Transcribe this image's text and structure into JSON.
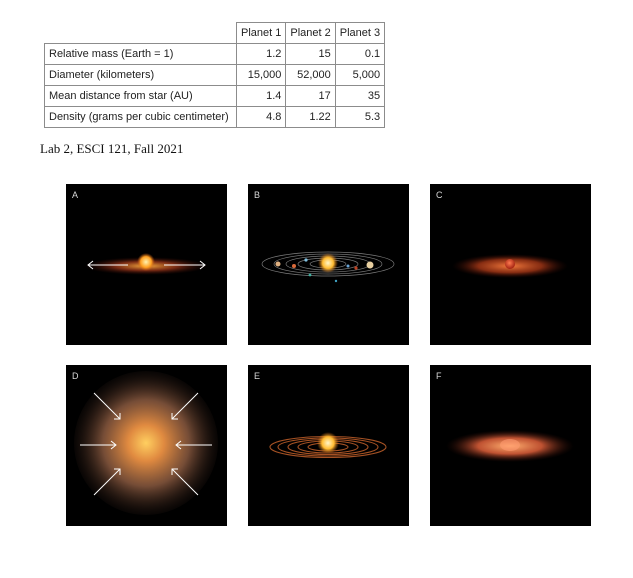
{
  "table": {
    "headers": [
      "",
      "Planet 1",
      "Planet 2",
      "Planet 3"
    ],
    "rows": [
      {
        "label": "Relative mass (Earth = 1)",
        "values": [
          "1.2",
          "15",
          "0.1"
        ]
      },
      {
        "label": "Diameter (kilometers)",
        "values": [
          "15,000",
          "52,000",
          "5,000"
        ]
      },
      {
        "label": "Mean distance from star (AU)",
        "values": [
          "1.4",
          "17",
          "35"
        ]
      },
      {
        "label": "Density (grams per cubic centimeter)",
        "values": [
          "4.8",
          "1.22",
          "5.3"
        ]
      }
    ]
  },
  "caption": "Lab 2, ESCI 121, Fall 2021",
  "panels": [
    {
      "label": "A",
      "depicts": "flattened disk around young star with outward arrows"
    },
    {
      "label": "B",
      "depicts": "star with orbiting planets on concentric orbits"
    },
    {
      "label": "C",
      "depicts": "glowing disk with small central body"
    },
    {
      "label": "D",
      "depicts": "collapsing cloud with inward arrows"
    },
    {
      "label": "E",
      "depicts": "star with ringed disk"
    },
    {
      "label": "F",
      "depicts": "thick glowing disk"
    }
  ]
}
